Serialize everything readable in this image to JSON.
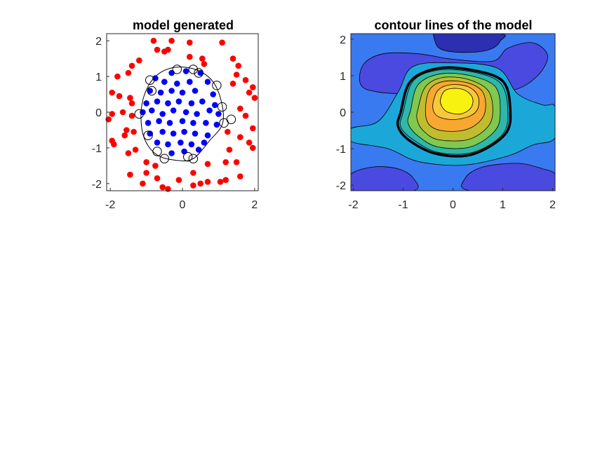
{
  "figure": {
    "background": "#ffffff"
  },
  "chart_data": [
    {
      "type": "scatter",
      "title": "model generated",
      "xlabel": "",
      "ylabel": "",
      "xlim": [
        -2.1,
        2.1
      ],
      "ylim": [
        -2.2,
        2.2
      ],
      "xticks": [
        "-2",
        "0",
        "2"
      ],
      "yticks": [
        "2",
        "1",
        "0",
        "-1",
        "-2"
      ],
      "grid": false,
      "legend": "none",
      "series": [
        {
          "color": "#ff0000",
          "points": [
            [
              -0.8,
              2.0
            ],
            [
              -0.3,
              2.0
            ],
            [
              0.2,
              1.95
            ],
            [
              1.1,
              1.95
            ],
            [
              -1.2,
              1.45
            ],
            [
              -0.7,
              1.75
            ],
            [
              -0.5,
              1.7
            ],
            [
              -0.4,
              1.75
            ],
            [
              0.2,
              1.55
            ],
            [
              0.55,
              1.5
            ],
            [
              0.6,
              1.35
            ],
            [
              1.4,
              1.5
            ],
            [
              1.55,
              1.3
            ],
            [
              -1.8,
              1.0
            ],
            [
              -1.5,
              1.1
            ],
            [
              -1.4,
              1.3
            ],
            [
              1.5,
              1.05
            ],
            [
              1.75,
              0.9
            ],
            [
              -1.95,
              0.55
            ],
            [
              -1.75,
              0.45
            ],
            [
              -1.45,
              0.4
            ],
            [
              -1.4,
              0.25
            ],
            [
              1.4,
              0.8
            ],
            [
              1.95,
              0.7
            ],
            [
              1.85,
              0.55
            ],
            [
              2.0,
              0.4
            ],
            [
              -1.65,
              0.0
            ],
            [
              -1.95,
              -0.05
            ],
            [
              -2.05,
              -0.2
            ],
            [
              -1.4,
              -0.1
            ],
            [
              1.6,
              0.1
            ],
            [
              1.75,
              -0.1
            ],
            [
              1.95,
              -0.45
            ],
            [
              -1.55,
              -0.5
            ],
            [
              -1.6,
              -0.65
            ],
            [
              -1.35,
              -0.55
            ],
            [
              1.25,
              -0.55
            ],
            [
              1.6,
              -0.7
            ],
            [
              -1.95,
              -0.8
            ],
            [
              -1.9,
              -0.9
            ],
            [
              -1.5,
              -1.15
            ],
            [
              -1.3,
              -1.05
            ],
            [
              1.3,
              -1.05
            ],
            [
              1.85,
              -0.85
            ],
            [
              1.95,
              -1.0
            ],
            [
              -1.0,
              -1.4
            ],
            [
              -0.75,
              -1.5
            ],
            [
              0.7,
              -1.45
            ],
            [
              1.2,
              -1.4
            ],
            [
              1.5,
              -1.4
            ],
            [
              -1.45,
              -1.75
            ],
            [
              -1.0,
              -1.7
            ],
            [
              -0.7,
              -1.85
            ],
            [
              -0.1,
              -1.9
            ],
            [
              0.3,
              -1.7
            ],
            [
              0.5,
              -2.0
            ],
            [
              0.7,
              -1.95
            ],
            [
              1.05,
              -1.95
            ],
            [
              1.2,
              -1.9
            ],
            [
              -1.1,
              -2.0
            ],
            [
              -0.55,
              -2.1
            ],
            [
              -0.4,
              -2.15
            ],
            [
              0.3,
              -2.05
            ],
            [
              1.6,
              -1.8
            ]
          ]
        },
        {
          "color": "#0000ff",
          "points": [
            [
              -0.3,
              1.1
            ],
            [
              0.1,
              1.15
            ],
            [
              0.5,
              1.1
            ],
            [
              -0.75,
              0.95
            ],
            [
              -0.5,
              0.85
            ],
            [
              -0.15,
              0.8
            ],
            [
              0.2,
              0.85
            ],
            [
              0.7,
              0.85
            ],
            [
              -0.9,
              0.6
            ],
            [
              -0.6,
              0.55
            ],
            [
              -0.3,
              0.6
            ],
            [
              0.0,
              0.55
            ],
            [
              0.35,
              0.6
            ],
            [
              0.85,
              0.5
            ],
            [
              -1.0,
              0.25
            ],
            [
              -0.7,
              0.3
            ],
            [
              -0.4,
              0.25
            ],
            [
              -0.1,
              0.3
            ],
            [
              0.25,
              0.25
            ],
            [
              0.55,
              0.3
            ],
            [
              0.9,
              0.2
            ],
            [
              -1.1,
              0.0
            ],
            [
              -0.85,
              0.05
            ],
            [
              -0.55,
              -0.05
            ],
            [
              -0.25,
              0.05
            ],
            [
              0.1,
              0.0
            ],
            [
              0.4,
              -0.05
            ],
            [
              0.75,
              0.05
            ],
            [
              1.0,
              -0.05
            ],
            [
              -0.95,
              -0.3
            ],
            [
              -0.65,
              -0.25
            ],
            [
              -0.35,
              -0.3
            ],
            [
              0.0,
              -0.25
            ],
            [
              0.3,
              -0.3
            ],
            [
              0.65,
              -0.3
            ],
            [
              0.95,
              -0.35
            ],
            [
              -0.9,
              -0.6
            ],
            [
              -0.55,
              -0.55
            ],
            [
              -0.25,
              -0.6
            ],
            [
              0.05,
              -0.55
            ],
            [
              0.35,
              -0.6
            ],
            [
              0.7,
              -0.65
            ],
            [
              -0.7,
              -0.85
            ],
            [
              -0.4,
              -0.9
            ],
            [
              -0.05,
              -0.85
            ],
            [
              0.25,
              -0.9
            ],
            [
              0.6,
              -0.85
            ],
            [
              -0.3,
              -1.15
            ],
            [
              0.05,
              -1.1
            ],
            [
              0.45,
              -1.05
            ]
          ]
        }
      ],
      "support_vectors": [
        [
          -0.15,
          1.2
        ],
        [
          0.3,
          1.2
        ],
        [
          0.45,
          1.1
        ],
        [
          0.95,
          0.75
        ],
        [
          -0.85,
          0.6
        ],
        [
          -0.9,
          0.9
        ],
        [
          -1.2,
          -0.05
        ],
        [
          1.1,
          0.15
        ],
        [
          1.15,
          -0.3
        ],
        [
          1.35,
          -0.2
        ],
        [
          -0.95,
          -0.65
        ],
        [
          -0.7,
          -1.1
        ],
        [
          -0.5,
          -1.3
        ],
        [
          0.15,
          -1.25
        ],
        [
          0.3,
          -1.3
        ]
      ],
      "boundary": [
        [
          -0.25,
          1.25
        ],
        [
          0.35,
          1.2
        ],
        [
          0.85,
          0.85
        ],
        [
          1.1,
          0.2
        ],
        [
          1.1,
          -0.35
        ],
        [
          0.75,
          -0.8
        ],
        [
          0.3,
          -1.3
        ],
        [
          -0.15,
          -1.35
        ],
        [
          -0.7,
          -1.2
        ],
        [
          -1.05,
          -0.75
        ],
        [
          -1.15,
          -0.1
        ],
        [
          -1.05,
          0.5
        ],
        [
          -0.75,
          1.0
        ],
        [
          -0.25,
          1.25
        ]
      ]
    },
    {
      "type": "contour",
      "title": "contour lines of the model",
      "xlabel": "",
      "ylabel": "",
      "xlim": [
        -2.05,
        2.05
      ],
      "ylim": [
        -2.15,
        2.15
      ],
      "xticks": [
        "-2",
        "-1",
        "0",
        "1",
        "2"
      ],
      "yticks": [
        "2",
        "1",
        "0",
        "-1",
        "-2"
      ],
      "grid": false,
      "legend": "none",
      "background_color": "#3a7af0",
      "regions": [
        {
          "color": "#2b2fb0",
          "points": [
            [
              -0.4,
              2.15
            ],
            [
              0.95,
              2.15
            ],
            [
              0.95,
              1.95
            ],
            [
              0.8,
              1.75
            ],
            [
              0.5,
              1.65
            ],
            [
              0.0,
              1.65
            ],
            [
              -0.3,
              1.78
            ],
            [
              -0.4,
              2.15
            ]
          ]
        },
        {
          "color": "#4a4ae0",
          "points": [
            [
              -2.05,
              -1.7
            ],
            [
              -1.6,
              -1.5
            ],
            [
              -1.1,
              -1.55
            ],
            [
              -0.8,
              -1.8
            ],
            [
              -0.8,
              -2.15
            ],
            [
              -2.05,
              -2.15
            ]
          ]
        },
        {
          "color": "#4a4ae0",
          "points": [
            [
              0.35,
              -2.15
            ],
            [
              0.25,
              -1.8
            ],
            [
              0.6,
              -1.5
            ],
            [
              1.3,
              -1.4
            ],
            [
              1.8,
              -1.55
            ],
            [
              2.05,
              -1.7
            ],
            [
              2.05,
              -2.15
            ]
          ]
        },
        {
          "color": "#4a4ae0",
          "points": [
            [
              -1.85,
              0.75
            ],
            [
              -1.8,
              1.3
            ],
            [
              -1.4,
              1.6
            ],
            [
              -0.7,
              1.6
            ],
            [
              0.0,
              1.45
            ],
            [
              0.8,
              1.4
            ],
            [
              1.1,
              1.75
            ],
            [
              1.6,
              1.9
            ],
            [
              1.9,
              1.55
            ],
            [
              1.7,
              1.0
            ],
            [
              1.2,
              0.6
            ],
            [
              0.3,
              0.55
            ],
            [
              -0.7,
              0.5
            ],
            [
              -1.5,
              0.55
            ]
          ]
        },
        {
          "color": "#1ba8d8",
          "points": [
            [
              -2.05,
              -0.45
            ],
            [
              -1.5,
              -0.25
            ],
            [
              -1.1,
              0.55
            ],
            [
              -0.8,
              1.25
            ],
            [
              0.0,
              1.35
            ],
            [
              0.9,
              1.2
            ],
            [
              1.3,
              0.5
            ],
            [
              1.8,
              0.2
            ],
            [
              2.05,
              0.15
            ],
            [
              2.05,
              -0.7
            ],
            [
              1.6,
              -0.9
            ],
            [
              1.1,
              -1.2
            ],
            [
              0.2,
              -1.45
            ],
            [
              -0.7,
              -1.35
            ],
            [
              -1.3,
              -1.0
            ],
            [
              -2.05,
              -0.8
            ]
          ]
        },
        {
          "color": "#2eb8a8",
          "points": [
            [
              -1.0,
              0.0
            ],
            [
              -0.8,
              0.85
            ],
            [
              -0.3,
              1.15
            ],
            [
              0.4,
              1.1
            ],
            [
              0.95,
              0.8
            ],
            [
              1.1,
              0.1
            ],
            [
              1.0,
              -0.6
            ],
            [
              0.4,
              -1.1
            ],
            [
              -0.3,
              -1.1
            ],
            [
              -0.8,
              -0.75
            ],
            [
              -1.05,
              -0.4
            ]
          ]
        },
        {
          "color": "#80c850",
          "points": [
            [
              -0.85,
              0.05
            ],
            [
              -0.7,
              0.75
            ],
            [
              -0.25,
              1.05
            ],
            [
              0.35,
              1.0
            ],
            [
              0.85,
              0.7
            ],
            [
              0.95,
              0.05
            ],
            [
              0.85,
              -0.5
            ],
            [
              0.35,
              -0.95
            ],
            [
              -0.3,
              -0.95
            ],
            [
              -0.7,
              -0.65
            ],
            [
              -0.9,
              -0.3
            ]
          ]
        },
        {
          "color": "#c0bc30",
          "points": [
            [
              -0.7,
              0.1
            ],
            [
              -0.55,
              0.7
            ],
            [
              -0.2,
              0.95
            ],
            [
              0.3,
              0.9
            ],
            [
              0.7,
              0.6
            ],
            [
              0.8,
              0.05
            ],
            [
              0.7,
              -0.4
            ],
            [
              0.3,
              -0.75
            ],
            [
              -0.3,
              -0.75
            ],
            [
              -0.6,
              -0.5
            ],
            [
              -0.72,
              -0.2
            ]
          ]
        },
        {
          "color": "#f8a830",
          "points": [
            [
              -0.55,
              0.15
            ],
            [
              -0.45,
              0.65
            ],
            [
              -0.15,
              0.85
            ],
            [
              0.3,
              0.8
            ],
            [
              0.6,
              0.55
            ],
            [
              0.65,
              0.05
            ],
            [
              0.5,
              -0.3
            ],
            [
              0.2,
              -0.5
            ],
            [
              -0.25,
              -0.5
            ],
            [
              -0.5,
              -0.3
            ]
          ]
        },
        {
          "color": "#f8c838",
          "points": [
            [
              -0.4,
              0.25
            ],
            [
              -0.3,
              0.6
            ],
            [
              -0.05,
              0.75
            ],
            [
              0.3,
              0.7
            ],
            [
              0.5,
              0.45
            ],
            [
              0.5,
              0.1
            ],
            [
              0.35,
              -0.1
            ],
            [
              0.05,
              -0.2
            ],
            [
              -0.25,
              -0.15
            ],
            [
              -0.38,
              0.0
            ]
          ]
        },
        {
          "color": "#f8f210",
          "points": [
            [
              -0.25,
              0.35
            ],
            [
              -0.15,
              0.6
            ],
            [
              0.1,
              0.65
            ],
            [
              0.3,
              0.55
            ],
            [
              0.4,
              0.35
            ],
            [
              0.35,
              0.1
            ],
            [
              0.15,
              -0.05
            ],
            [
              -0.1,
              0.0
            ],
            [
              -0.22,
              0.15
            ]
          ]
        }
      ],
      "zero_contour": [
        [
          -1.05,
          0.0
        ],
        [
          -0.85,
          0.85
        ],
        [
          -0.3,
          1.2
        ],
        [
          0.4,
          1.15
        ],
        [
          1.0,
          0.85
        ],
        [
          1.15,
          0.1
        ],
        [
          1.05,
          -0.6
        ],
        [
          0.4,
          -1.15
        ],
        [
          -0.3,
          -1.15
        ],
        [
          -0.85,
          -0.8
        ],
        [
          -1.1,
          -0.4
        ],
        [
          -1.05,
          0.0
        ]
      ]
    }
  ]
}
